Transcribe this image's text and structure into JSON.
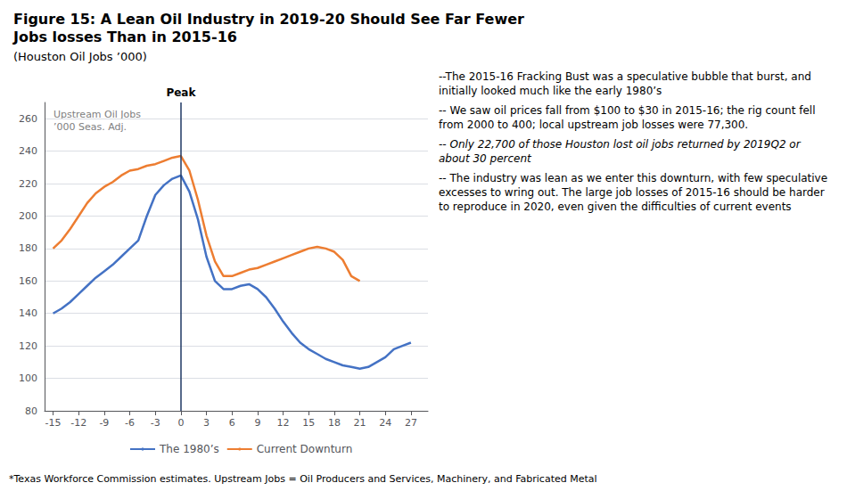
{
  "chart_data": {
    "type": "line",
    "title": "Figure 15: A Lean Oil Industry in 2019-20 Should See Far Fewer\nJobs losses Than in 2015-16",
    "subtitle": "(Houston Oil Jobs ’000)",
    "series": [
      {
        "name": "The 1980’s",
        "color": "#4472C4",
        "x": [
          -15,
          -14,
          -13,
          -12,
          -11,
          -10,
          -9,
          -8,
          -7,
          -6,
          -5,
          -4,
          -3,
          -2,
          -1,
          0,
          1,
          2,
          3,
          4,
          5,
          6,
          7,
          8,
          9,
          10,
          11,
          12,
          13,
          14,
          15,
          16,
          17,
          18,
          19,
          20,
          21,
          22,
          23,
          24,
          25,
          26,
          27
        ],
        "values": [
          140,
          143,
          147,
          152,
          157,
          162,
          166,
          170,
          175,
          180,
          185,
          200,
          213,
          219,
          223,
          225,
          215,
          198,
          175,
          160,
          155,
          155,
          157,
          158,
          155,
          150,
          143,
          135,
          128,
          122,
          118,
          115,
          112,
          110,
          108,
          107,
          106,
          107,
          110,
          113,
          118,
          120,
          122
        ]
      },
      {
        "name": "Current Downturn",
        "color": "#ED7D31",
        "x": [
          -15,
          -14,
          -13,
          -12,
          -11,
          -10,
          -9,
          -8,
          -7,
          -6,
          -5,
          -4,
          -3,
          -2,
          -1,
          0,
          1,
          2,
          3,
          4,
          5,
          6,
          7,
          8,
          9,
          10,
          11,
          12,
          13,
          14,
          15,
          16,
          17,
          18,
          19,
          20,
          21
        ],
        "values": [
          180,
          185,
          192,
          200,
          208,
          214,
          218,
          221,
          225,
          228,
          229,
          231,
          232,
          234,
          236,
          237,
          228,
          210,
          188,
          172,
          163,
          163,
          165,
          167,
          168,
          170,
          172,
          174,
          176,
          178,
          180,
          181,
          180,
          178,
          173,
          163,
          160
        ]
      }
    ],
    "xlim": [
      -16,
      29
    ],
    "xticks": [
      -15,
      -12,
      -9,
      -6,
      -3,
      0,
      3,
      6,
      9,
      12,
      15,
      18,
      21,
      24,
      27
    ],
    "ylim": [
      80,
      270
    ],
    "yticks": [
      80,
      100,
      120,
      140,
      160,
      180,
      200,
      220,
      240,
      260
    ],
    "grid": true,
    "legend": "bottom",
    "annotations": [
      {
        "text": "Upstream Oil Jobs\n’000 Seas. Adj.",
        "color": "#808080"
      },
      {
        "text": "Peak",
        "x": 0,
        "line_color": "#1F3864"
      }
    ],
    "notes": [
      {
        "text": "--The 2015-16 Fracking Bust was a speculative bubble that burst, and initially looked much like the early 1980’s"
      },
      {
        "text": "-- We saw oil prices fall from $100 to $30 in 2015-16; the rig count fell from 2000 to 400; local upstream job losses were 77,300."
      },
      {
        "text": "-- Only 22,700 of those Houston lost oil jobs returned by 2019Q2 or about 30 percent",
        "font_style": "italic"
      },
      {
        "text": "-- The industry was lean as we enter this downturn, with few speculative excesses to wring out. The large job losses of 2015-16 should be harder to reproduce in 2020, even given the difficulties of current events"
      }
    ],
    "footnote": "*Texas Workforce Commission estimates. Upstream Jobs = Oil Producers and Services, Machinery, and Fabricated Metal"
  }
}
